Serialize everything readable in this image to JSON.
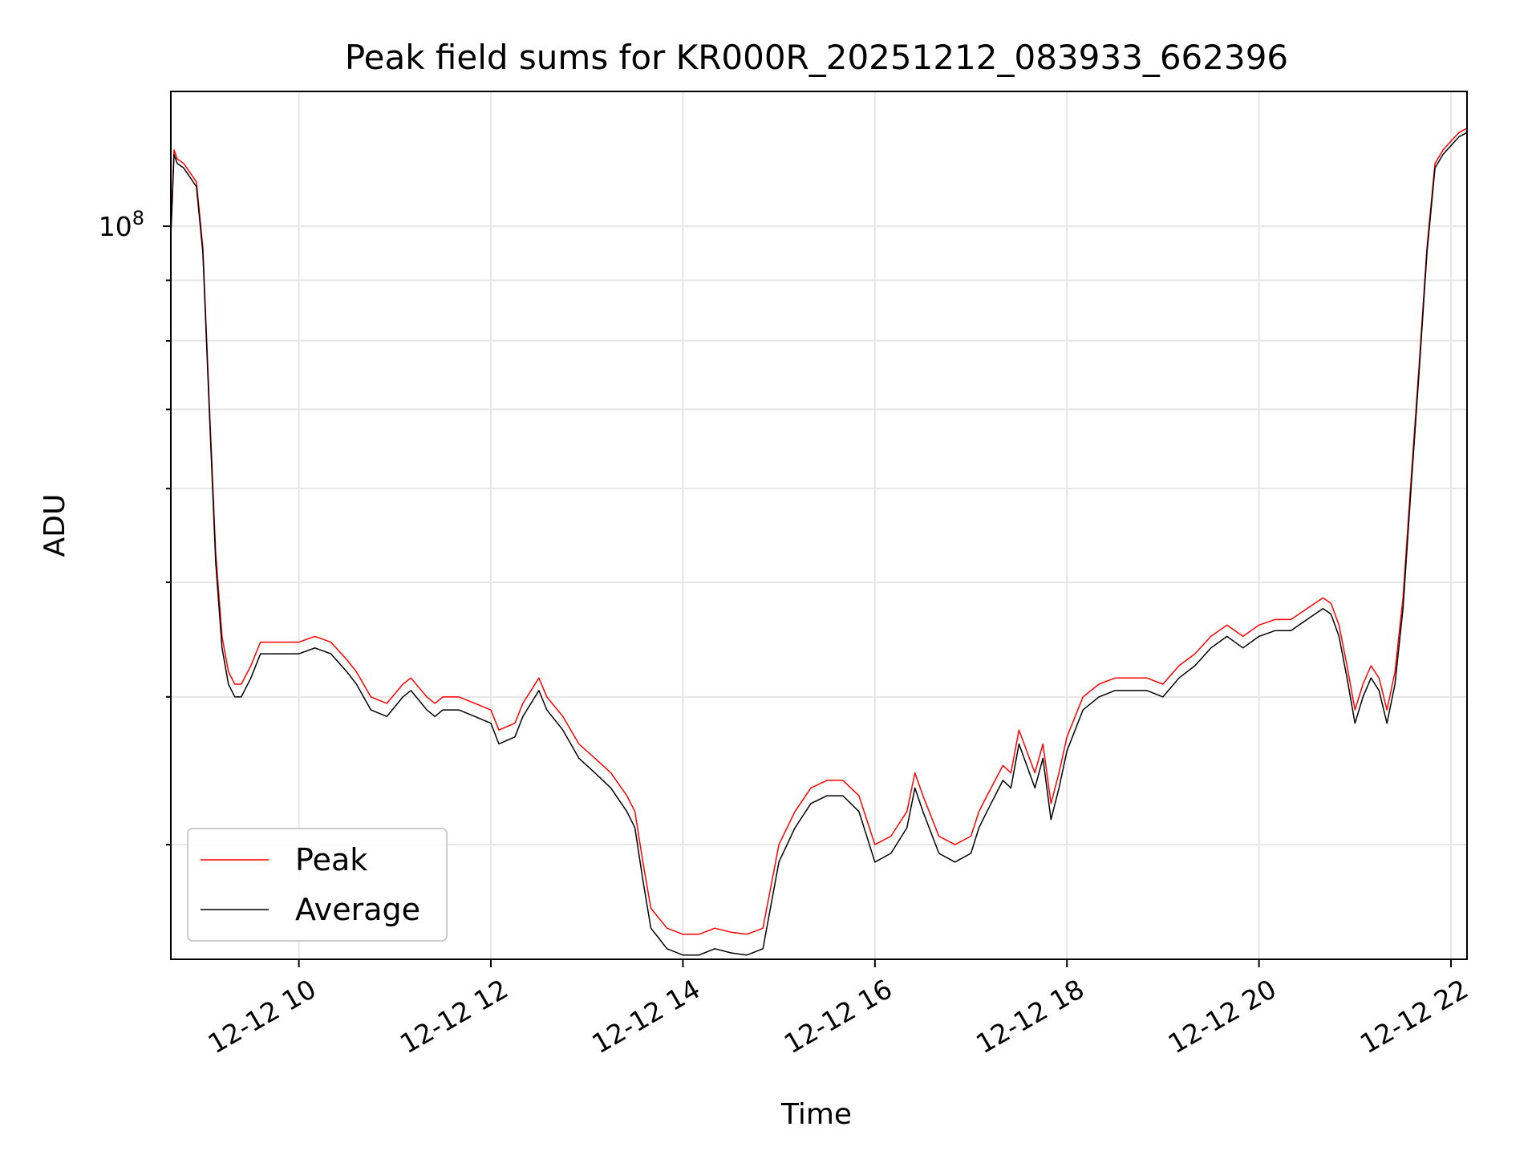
{
  "chart_data": {
    "type": "line",
    "title": "Peak field sums for KR000R_20251212_083933_662396",
    "xlabel": "Time",
    "ylabel": "ADU",
    "y_scale": "log",
    "x_range": [
      "2025-12-12T08:40",
      "2025-12-12T22:10"
    ],
    "ylim": [
      24000000,
      130000000
    ],
    "x_ticks": [
      {
        "t": "2025-12-12T10:00",
        "label": "12-12 10"
      },
      {
        "t": "2025-12-12T12:00",
        "label": "12-12 12"
      },
      {
        "t": "2025-12-12T14:00",
        "label": "12-12 14"
      },
      {
        "t": "2025-12-12T16:00",
        "label": "12-12 16"
      },
      {
        "t": "2025-12-12T18:00",
        "label": "12-12 18"
      },
      {
        "t": "2025-12-12T20:00",
        "label": "12-12 20"
      },
      {
        "t": "2025-12-12T22:00",
        "label": "12-12 22"
      }
    ],
    "y_major_tick": {
      "value": 100000000,
      "label": "10",
      "exponent": "8"
    },
    "y_minor_ticks": [
      30000000,
      40000000,
      50000000,
      60000000,
      70000000,
      80000000,
      90000000
    ],
    "grid": true,
    "legend": "lower-left",
    "colors": {
      "peak": "#ff0000",
      "average": "#000000",
      "grid": "#e6e6e6"
    },
    "series": [
      {
        "name": "Average",
        "x": [
          "08:40",
          "08:42",
          "08:44",
          "08:48",
          "08:52",
          "08:56",
          "09:00",
          "09:04",
          "09:08",
          "09:12",
          "09:16",
          "09:20",
          "09:24",
          "09:30",
          "09:36",
          "09:45",
          "09:50",
          "10:00",
          "10:10",
          "10:20",
          "10:30",
          "10:36",
          "10:45",
          "10:55",
          "11:05",
          "11:10",
          "11:20",
          "11:25",
          "11:30",
          "11:40",
          "11:50",
          "12:00",
          "12:05",
          "12:15",
          "12:20",
          "12:30",
          "12:35",
          "12:45",
          "12:55",
          "13:05",
          "13:15",
          "13:25",
          "13:30",
          "13:35",
          "13:40",
          "13:45",
          "13:50",
          "14:00",
          "14:10",
          "14:20",
          "14:30",
          "14:40",
          "14:50",
          "15:00",
          "15:10",
          "15:20",
          "15:30",
          "15:40",
          "15:50",
          "16:00",
          "16:10",
          "16:20",
          "16:25",
          "16:30",
          "16:40",
          "16:50",
          "17:00",
          "17:05",
          "17:10",
          "17:20",
          "17:25",
          "17:30",
          "17:40",
          "17:45",
          "17:50",
          "17:55",
          "18:00",
          "18:10",
          "18:20",
          "18:30",
          "18:40",
          "18:50",
          "19:00",
          "19:10",
          "19:20",
          "19:30",
          "19:40",
          "19:50",
          "20:00",
          "20:10",
          "20:20",
          "20:30",
          "20:40",
          "20:45",
          "20:50",
          "20:55",
          "21:00",
          "21:05",
          "21:10",
          "21:15",
          "21:20",
          "21:25",
          "21:30",
          "21:35",
          "21:40",
          "21:45",
          "21:50",
          "21:55",
          "22:00",
          "22:05",
          "22:10"
        ],
        "y": [
          98000000,
          115000000,
          113000000,
          112000000,
          110000000,
          108000000,
          95000000,
          70000000,
          52000000,
          44000000,
          41000000,
          40000000,
          40000000,
          41500000,
          43500000,
          43500000,
          43500000,
          43500000,
          44000000,
          43500000,
          42000000,
          41000000,
          39000000,
          38500000,
          40000000,
          40500000,
          39000000,
          38500000,
          39000000,
          39000000,
          38500000,
          38000000,
          36500000,
          37000000,
          38500000,
          40500000,
          39000000,
          37500000,
          35500000,
          34500000,
          33500000,
          32000000,
          31000000,
          28000000,
          25500000,
          25000000,
          24500000,
          24200000,
          24200000,
          24500000,
          24300000,
          24200000,
          24500000,
          29000000,
          31000000,
          32500000,
          33000000,
          33000000,
          32000000,
          29000000,
          29500000,
          31000000,
          33500000,
          32000000,
          29500000,
          29000000,
          29500000,
          31000000,
          32000000,
          34000000,
          33500000,
          36500000,
          33500000,
          35500000,
          31500000,
          33500000,
          36000000,
          39000000,
          40000000,
          40500000,
          40500000,
          40500000,
          40000000,
          41500000,
          42500000,
          44000000,
          45000000,
          44000000,
          45000000,
          45500000,
          45500000,
          46500000,
          47500000,
          47000000,
          45000000,
          41500000,
          38000000,
          40000000,
          41500000,
          40500000,
          38000000,
          41000000,
          47500000,
          60000000,
          75000000,
          95000000,
          112000000,
          115000000,
          117000000,
          119000000,
          120000000
        ]
      },
      {
        "name": "Peak",
        "x": [
          "08:40",
          "08:42",
          "08:44",
          "08:48",
          "08:52",
          "08:56",
          "09:00",
          "09:04",
          "09:08",
          "09:12",
          "09:16",
          "09:20",
          "09:24",
          "09:30",
          "09:36",
          "09:45",
          "09:50",
          "10:00",
          "10:10",
          "10:20",
          "10:30",
          "10:36",
          "10:45",
          "10:55",
          "11:05",
          "11:10",
          "11:20",
          "11:25",
          "11:30",
          "11:40",
          "11:50",
          "12:00",
          "12:05",
          "12:15",
          "12:20",
          "12:30",
          "12:35",
          "12:45",
          "12:55",
          "13:05",
          "13:15",
          "13:25",
          "13:30",
          "13:35",
          "13:40",
          "13:45",
          "13:50",
          "14:00",
          "14:10",
          "14:20",
          "14:30",
          "14:40",
          "14:50",
          "15:00",
          "15:10",
          "15:20",
          "15:30",
          "15:40",
          "15:50",
          "16:00",
          "16:10",
          "16:20",
          "16:25",
          "16:30",
          "16:40",
          "16:50",
          "17:00",
          "17:05",
          "17:10",
          "17:20",
          "17:25",
          "17:30",
          "17:40",
          "17:45",
          "17:50",
          "17:55",
          "18:00",
          "18:10",
          "18:20",
          "18:30",
          "18:40",
          "18:50",
          "19:00",
          "19:10",
          "19:20",
          "19:30",
          "19:40",
          "19:50",
          "20:00",
          "20:10",
          "20:20",
          "20:30",
          "20:40",
          "20:45",
          "20:50",
          "20:55",
          "21:00",
          "21:05",
          "21:10",
          "21:15",
          "21:20",
          "21:25",
          "21:30",
          "21:35",
          "21:40",
          "21:45",
          "21:50",
          "21:55",
          "22:00",
          "22:05",
          "22:10"
        ],
        "y": [
          99000000,
          116000000,
          114000000,
          113000000,
          111000000,
          109000000,
          96000000,
          71000000,
          53000000,
          45000000,
          42000000,
          41000000,
          41000000,
          42500000,
          44500000,
          44500000,
          44500000,
          44500000,
          45000000,
          44500000,
          43000000,
          42000000,
          40000000,
          39500000,
          41000000,
          41500000,
          40000000,
          39500000,
          40000000,
          40000000,
          39500000,
          39000000,
          37500000,
          38000000,
          39500000,
          41500000,
          40000000,
          38500000,
          36500000,
          35500000,
          34500000,
          33000000,
          32000000,
          29000000,
          26500000,
          26000000,
          25500000,
          25200000,
          25200000,
          25500000,
          25300000,
          25200000,
          25500000,
          30000000,
          32000000,
          33500000,
          34000000,
          34000000,
          33000000,
          30000000,
          30500000,
          32000000,
          34500000,
          33000000,
          30500000,
          30000000,
          30500000,
          32000000,
          33000000,
          35000000,
          34500000,
          37500000,
          34500000,
          36500000,
          32500000,
          34500000,
          37000000,
          40000000,
          41000000,
          41500000,
          41500000,
          41500000,
          41000000,
          42500000,
          43500000,
          45000000,
          46000000,
          45000000,
          46000000,
          46500000,
          46500000,
          47500000,
          48500000,
          48000000,
          46000000,
          42500000,
          39000000,
          41000000,
          42500000,
          41500000,
          39000000,
          42000000,
          48500000,
          61000000,
          76000000,
          96000000,
          113000000,
          116000000,
          118000000,
          120000000,
          121000000
        ]
      }
    ]
  }
}
